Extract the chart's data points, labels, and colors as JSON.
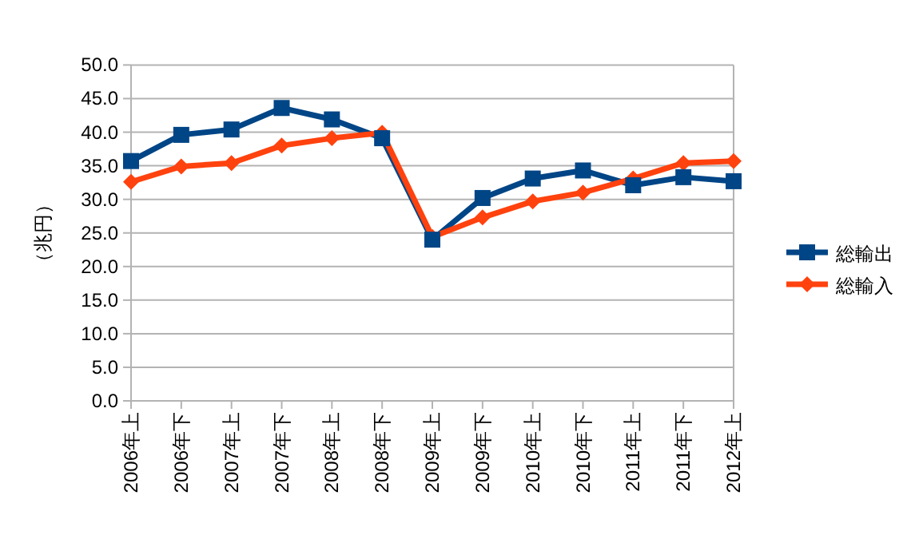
{
  "chart_data": {
    "type": "line",
    "ylabel": "（兆円）",
    "categories": [
      "2006年上",
      "2006年下",
      "2007年上",
      "2007年下",
      "2008年上",
      "2008年下",
      "2009年上",
      "2009年下",
      "2010年上",
      "2010年下",
      "2011年上",
      "2011年下",
      "2012年上"
    ],
    "series": [
      {
        "name": "総輸出",
        "color": "#004586",
        "marker": "square",
        "values": [
          35.7,
          39.6,
          40.4,
          43.6,
          41.9,
          39.1,
          24.0,
          30.2,
          33.1,
          34.3,
          32.1,
          33.3,
          32.7
        ]
      },
      {
        "name": "総輸入",
        "color": "#ff420e",
        "marker": "diamond",
        "values": [
          32.6,
          34.9,
          35.4,
          38.0,
          39.1,
          39.9,
          24.4,
          27.3,
          29.7,
          31.0,
          33.1,
          35.4,
          35.7
        ]
      }
    ],
    "ylim": [
      0,
      50
    ],
    "yticks": [
      {
        "value": 0,
        "label": "0.0"
      },
      {
        "value": 5,
        "label": "5.0"
      },
      {
        "value": 10,
        "label": "10.0"
      },
      {
        "value": 15,
        "label": "15.0"
      },
      {
        "value": 20,
        "label": "20.0"
      },
      {
        "value": 25,
        "label": "25.0"
      },
      {
        "value": 30,
        "label": "30.0"
      },
      {
        "value": 35,
        "label": "35.0"
      },
      {
        "value": 40,
        "label": "40.0"
      },
      {
        "value": 45,
        "label": "45.0"
      },
      {
        "value": 50,
        "label": "50.0"
      }
    ],
    "grid": "y",
    "legend": "right",
    "line_style": "solid"
  }
}
